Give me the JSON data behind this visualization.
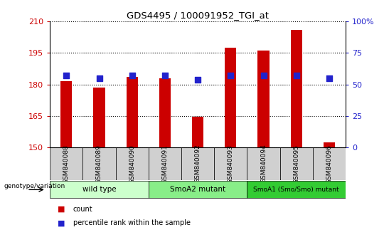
{
  "title": "GDS4495 / 100091952_TGI_at",
  "samples": [
    "GSM840088",
    "GSM840089",
    "GSM840090",
    "GSM840091",
    "GSM840092",
    "GSM840093",
    "GSM840094",
    "GSM840095",
    "GSM840096"
  ],
  "counts": [
    181.5,
    178.5,
    183.5,
    183.0,
    164.5,
    197.5,
    196.0,
    206.0,
    152.5
  ],
  "percentiles": [
    57,
    55,
    57,
    57,
    54,
    57,
    57,
    57,
    55
  ],
  "ylim_left": [
    150,
    210
  ],
  "ylim_right": [
    0,
    100
  ],
  "yticks_left": [
    150,
    165,
    180,
    195,
    210
  ],
  "yticks_right": [
    0,
    25,
    50,
    75,
    100
  ],
  "bar_color": "#cc0000",
  "dot_color": "#2222cc",
  "groups": [
    {
      "label": "wild type",
      "start": 0,
      "end": 3,
      "color": "#ccffcc"
    },
    {
      "label": "SmoA2 mutant",
      "start": 3,
      "end": 6,
      "color": "#88ee88"
    },
    {
      "label": "SmoA1 (Smo/Smo) mutant",
      "start": 6,
      "end": 9,
      "color": "#33cc33"
    }
  ],
  "legend_count_label": "count",
  "legend_pct_label": "percentile rank within the sample",
  "genotype_label": "genotype/variation",
  "left_tick_color": "#cc0000",
  "right_tick_color": "#2222cc",
  "bar_width": 0.35,
  "dot_size": 30,
  "tickbox_color": "#d0d0d0"
}
